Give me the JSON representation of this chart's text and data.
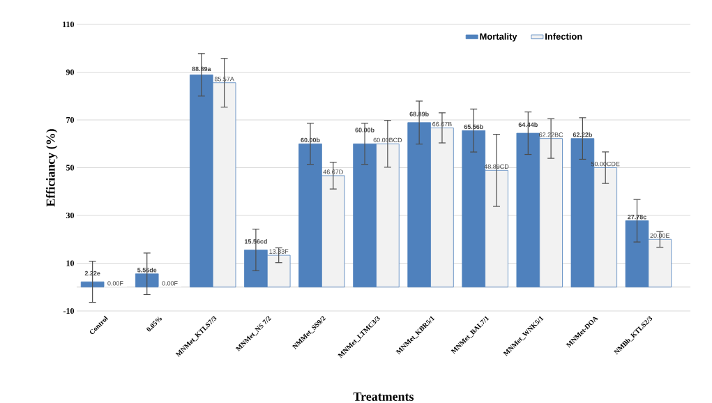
{
  "chart_data": {
    "type": "bar",
    "xlabel": "Treatments",
    "ylabel": "Efficiancy (%)",
    "categories": [
      "Control",
      "0.05%",
      "MNMet_KTLS7/3",
      "MNMet_NS 7/2",
      "NMMet_SS9/2",
      "MNMet_LTMC3/3",
      "MNMet_KBR5/1",
      "MNMet_BAL7/1",
      "MNMet_WNK5/1",
      "MNMet-DOA",
      "NMBb_KTLS2/3"
    ],
    "series": [
      {
        "name": "Mortality",
        "color": "#4f81bd",
        "values": [
          2.22,
          5.56,
          88.89,
          15.56,
          60.0,
          60.0,
          68.89,
          65.56,
          64.44,
          62.22,
          27.78
        ],
        "errors": [
          8.6,
          8.7,
          8.9,
          8.7,
          8.6,
          8.6,
          9.0,
          9.0,
          8.9,
          8.7,
          8.9
        ],
        "value_labels": [
          "2.22e",
          "5.56de",
          "88.89a",
          "15.56cd",
          "60.00b",
          "60.00b",
          "68.89b",
          "65.56b",
          "64.44b",
          "62.22b",
          "27.78c"
        ]
      },
      {
        "name": "Infection",
        "color": "#f2f2f2",
        "values": [
          0.0,
          0.0,
          85.57,
          13.33,
          46.67,
          60.0,
          66.67,
          48.89,
          62.22,
          50.0,
          20.0
        ],
        "errors": [
          null,
          null,
          10.2,
          3.1,
          5.6,
          9.8,
          6.3,
          15.1,
          8.3,
          6.6,
          3.3
        ],
        "value_labels": [
          "0.00F",
          "0.00F",
          "85.57A",
          "13.33F",
          "46.67D",
          "60.00BCD",
          "66.67B",
          "48.89CD",
          "62.22BC",
          "50.00CDE",
          "20.00E"
        ]
      }
    ],
    "ylim": [
      -10,
      110
    ],
    "yticks": [
      -10,
      10,
      30,
      50,
      70,
      90,
      110
    ],
    "grid": "y",
    "legend": "top right"
  }
}
